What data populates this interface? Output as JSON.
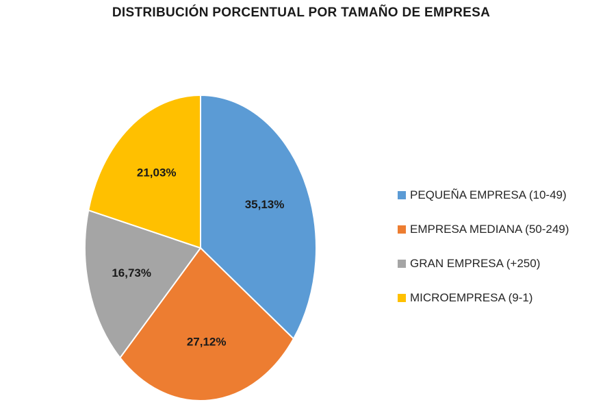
{
  "chart_data": {
    "type": "pie",
    "title": "DISTRIBUCIÓN PORCENTUAL POR TAMAÑO DE EMPRESA",
    "legend_position": "right",
    "slices": [
      {
        "name": "PEQUEÑA EMPRESA (10-49)",
        "value": 35.13,
        "label": "35,13%",
        "color": "#5b9bd5"
      },
      {
        "name": "EMPRESA MEDIANA (50-249)",
        "value": 27.12,
        "label": "27,12%",
        "color": "#ed7d31"
      },
      {
        "name": "GRAN EMPRESA (+250)",
        "value": 16.73,
        "label": "16,73%",
        "color": "#a5a5a5"
      },
      {
        "name": "MICROEMPRESA (9-1)",
        "value": 21.03,
        "label": "21,03%",
        "color": "#ffc000"
      }
    ]
  }
}
